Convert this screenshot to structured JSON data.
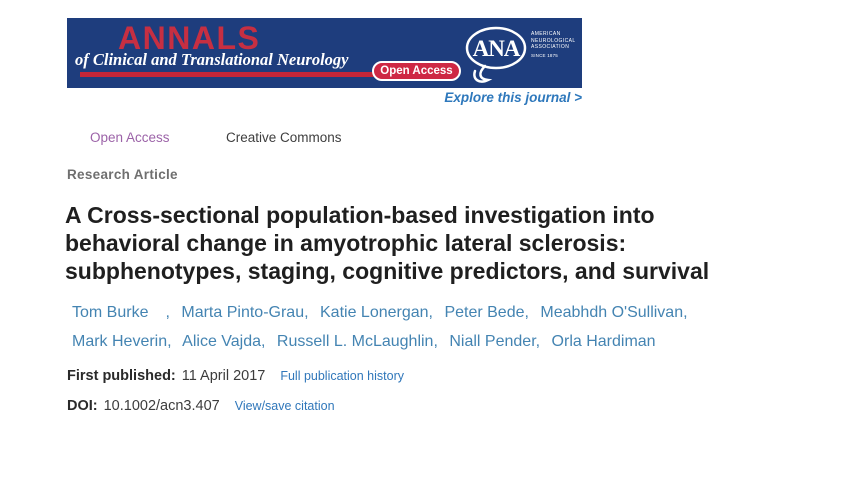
{
  "banner": {
    "journal_name": "ANNALS",
    "journal_subtitle": "of Clinical and Translational Neurology",
    "open_access_label": "Open Access",
    "ana_logo_text": "ANA",
    "association_lines": [
      "American",
      "Neurological",
      "Association"
    ],
    "association_since": "since 1875",
    "explore_link": "Explore this journal >"
  },
  "badges": {
    "open_access": "Open Access",
    "creative_commons": "Creative Commons"
  },
  "article": {
    "type_label": "Research Article",
    "title_lines": [
      "A Cross-sectional population-based investigation into",
      "behavioral change in amyotrophic lateral sclerosis:",
      "subphenotypes, staging, cognitive predictors, and survival"
    ],
    "authors": [
      "Tom Burke",
      "Marta Pinto-Grau",
      "Katie Lonergan",
      "Peter Bede",
      "Meabhdh O'Sullivan",
      "Mark Heverin",
      "Alice Vajda",
      "Russell L. McLaughlin",
      "Niall Pender",
      "Orla Hardiman"
    ],
    "first_published_label": "First published:",
    "first_published_date": "11 April 2017",
    "publication_history_link": "Full publication history",
    "doi_label": "DOI:",
    "doi_value": "10.1002/acn3.407",
    "citation_link": "View/save citation"
  },
  "colors": {
    "banner_blue": "#1e3d7d",
    "brand_red": "#c42638",
    "pill_red": "#ce2844",
    "link_blue": "#3077ba",
    "explore_blue": "#2e78bc",
    "author_blue": "#4484b2",
    "open_access_purple": "#9c63a8"
  }
}
